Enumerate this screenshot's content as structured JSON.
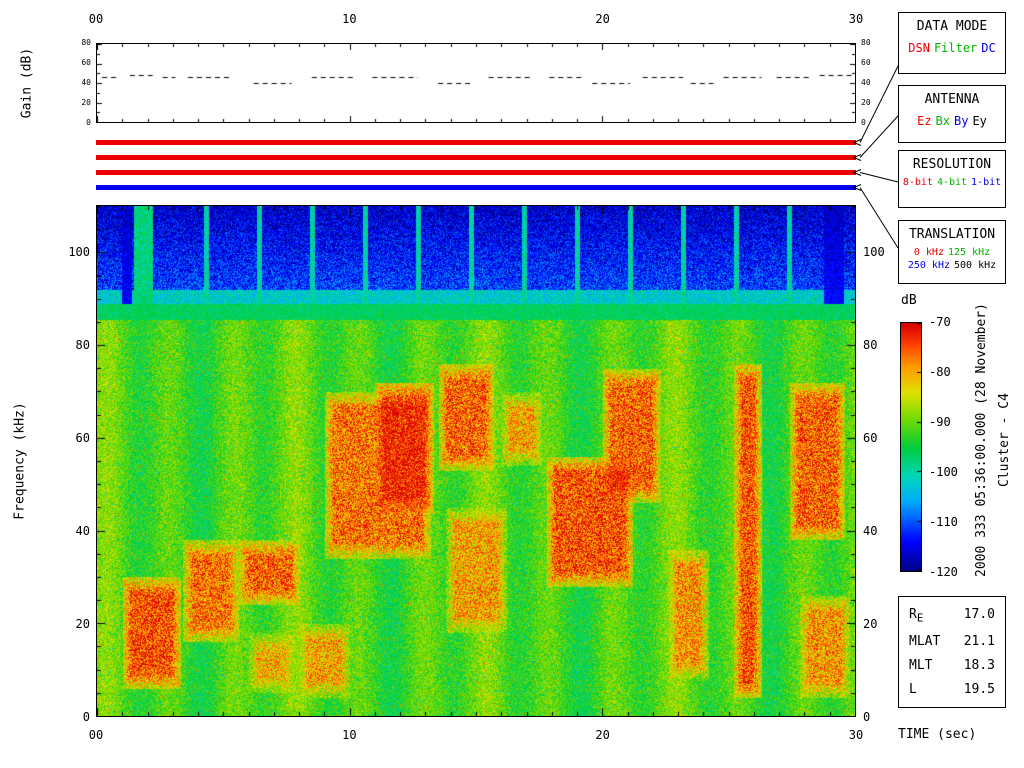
{
  "chart_data": {
    "type": "heatmap",
    "annotations": {
      "datetime": "2000 333 05:36:00.000 (28 November)",
      "spacecraft": "Cluster - C4"
    },
    "status_bars": [
      {
        "legend": "DATA MODE",
        "value": "DSN",
        "color": "#ee0000"
      },
      {
        "legend": "ANTENNA",
        "value": "Ez",
        "color": "#ee0000"
      },
      {
        "legend": "RESOLUTION",
        "value": "8-bit",
        "color": "#ee0000"
      },
      {
        "legend": "TRANSLATION",
        "value": "250 kHz",
        "color": "#0000ee"
      }
    ],
    "status_legends": [
      {
        "title": "DATA MODE",
        "items": [
          {
            "label": "DSN",
            "color": "#ee0000"
          },
          {
            "label": "Filter",
            "color": "#00b400"
          },
          {
            "label": "DC",
            "color": "#0000ee"
          }
        ]
      },
      {
        "title": "ANTENNA",
        "items": [
          {
            "label": "Ez",
            "color": "#ee0000"
          },
          {
            "label": "Bx",
            "color": "#00b400"
          },
          {
            "label": "By",
            "color": "#0000ee"
          },
          {
            "label": "Ey",
            "color": "#000000"
          }
        ]
      },
      {
        "title": "RESOLUTION",
        "items": [
          {
            "label": "8-bit",
            "color": "#ee0000"
          },
          {
            "label": "4-bit",
            "color": "#00b400"
          },
          {
            "label": "1-bit",
            "color": "#0000ee"
          }
        ]
      },
      {
        "title": "TRANSLATION",
        "items": [
          {
            "label": "0 kHz",
            "color": "#ee0000"
          },
          {
            "label": "125 kHz",
            "color": "#00b400"
          },
          {
            "label": "250 kHz",
            "color": "#0000ee"
          },
          {
            "label": "500 kHz",
            "color": "#000000"
          }
        ]
      }
    ],
    "panels": [
      {
        "name": "gain",
        "type": "line",
        "ylabel": "Gain (dB)",
        "xlim": [
          0,
          30
        ],
        "ylim": [
          0,
          80
        ],
        "xticks": [
          0,
          10,
          20,
          30
        ],
        "xtick_labels": [
          "00",
          "10",
          "20",
          "30"
        ],
        "yticks": [
          0,
          20,
          40,
          60,
          80
        ],
        "ytick_labels": [
          "0",
          "20",
          "40",
          "60",
          "80"
        ],
        "line_style": "dashed",
        "segments": [
          {
            "t0": 0.2,
            "t1": 0.9,
            "gain": 46
          },
          {
            "t0": 1.3,
            "t1": 2.2,
            "gain": 48
          },
          {
            "t0": 2.6,
            "t1": 3.1,
            "gain": 46
          },
          {
            "t0": 3.6,
            "t1": 5.3,
            "gain": 46
          },
          {
            "t0": 6.2,
            "t1": 7.7,
            "gain": 40
          },
          {
            "t0": 8.5,
            "t1": 10.2,
            "gain": 46
          },
          {
            "t0": 10.9,
            "t1": 12.7,
            "gain": 46
          },
          {
            "t0": 13.5,
            "t1": 14.9,
            "gain": 40
          },
          {
            "t0": 15.5,
            "t1": 17.2,
            "gain": 46
          },
          {
            "t0": 17.9,
            "t1": 19.3,
            "gain": 46
          },
          {
            "t0": 19.6,
            "t1": 21.1,
            "gain": 40
          },
          {
            "t0": 21.6,
            "t1": 23.2,
            "gain": 46
          },
          {
            "t0": 23.5,
            "t1": 24.4,
            "gain": 40
          },
          {
            "t0": 24.8,
            "t1": 26.3,
            "gain": 46
          },
          {
            "t0": 26.9,
            "t1": 28.2,
            "gain": 46
          },
          {
            "t0": 28.6,
            "t1": 29.9,
            "gain": 48
          }
        ]
      },
      {
        "name": "spectrogram",
        "type": "heatmap",
        "xlabel": "TIME (sec)",
        "ylabel": "Frequency (kHz)",
        "xlim": [
          0,
          30
        ],
        "ylim": [
          0,
          110
        ],
        "xticks": [
          0,
          10,
          20,
          30
        ],
        "xtick_labels": [
          "00",
          "10",
          "20",
          "30"
        ],
        "yticks": [
          0,
          20,
          40,
          60,
          80,
          100
        ],
        "ytick_labels": [
          "0",
          "20",
          "40",
          "60",
          "80",
          "100"
        ],
        "colorbar": {
          "label": "dB",
          "min": -120,
          "max": -70,
          "ticks": [
            -70,
            -80,
            -90,
            -100,
            -110,
            -120
          ],
          "tick_labels": [
            "-70",
            "-80",
            "-90",
            "-100",
            "-110",
            "-120"
          ]
        },
        "noise_floor_bands": [
          {
            "f0": 92,
            "f1": 110,
            "db": -112,
            "desc": "blue speckled noise floor"
          },
          {
            "f0": 89,
            "f1": 92,
            "db": -102,
            "desc": "transition band"
          },
          {
            "f0": 85.5,
            "f1": 89,
            "db": -96.5,
            "desc": "green band near 88 kHz"
          },
          {
            "f0": 0,
            "f1": 85.5,
            "db": -91.5,
            "desc": "broadband yellow-green emission with vertical striations"
          }
        ],
        "stripe_period_sec": 2.5,
        "hot_regions": [
          {
            "t0": 1.0,
            "t1": 3.3,
            "f0": 6,
            "f1": 30,
            "db": -75
          },
          {
            "t0": 3.4,
            "t1": 5.6,
            "f0": 16,
            "f1": 38,
            "db": -77
          },
          {
            "t0": 5.6,
            "t1": 8.0,
            "f0": 24,
            "f1": 38,
            "db": -76
          },
          {
            "t0": 6.0,
            "t1": 7.8,
            "f0": 5,
            "f1": 18,
            "db": -81
          },
          {
            "t0": 8.0,
            "t1": 10.0,
            "f0": 4,
            "f1": 20,
            "db": -80
          },
          {
            "t0": 9.0,
            "t1": 13.2,
            "f0": 34,
            "f1": 70,
            "db": -77
          },
          {
            "t0": 11.0,
            "t1": 13.3,
            "f0": 44,
            "f1": 72,
            "db": -74
          },
          {
            "t0": 13.5,
            "t1": 15.7,
            "f0": 53,
            "f1": 76,
            "db": -76
          },
          {
            "t0": 13.8,
            "t1": 16.2,
            "f0": 18,
            "f1": 45,
            "db": -80
          },
          {
            "t0": 16.0,
            "t1": 17.6,
            "f0": 54,
            "f1": 70,
            "db": -80
          },
          {
            "t0": 17.8,
            "t1": 21.2,
            "f0": 28,
            "f1": 56,
            "db": -75
          },
          {
            "t0": 20.0,
            "t1": 22.3,
            "f0": 46,
            "f1": 75,
            "db": -76
          },
          {
            "t0": 22.6,
            "t1": 24.2,
            "f0": 8,
            "f1": 36,
            "db": -79
          },
          {
            "t0": 25.2,
            "t1": 26.3,
            "f0": 4,
            "f1": 76,
            "db": -75
          },
          {
            "t0": 27.4,
            "t1": 29.6,
            "f0": 38,
            "f1": 72,
            "db": -76
          },
          {
            "t0": 27.8,
            "t1": 29.8,
            "f0": 4,
            "f1": 26,
            "db": -79
          }
        ],
        "cold_columns": [
          {
            "t0": 0.95,
            "t1": 1.35
          },
          {
            "t0": 28.75,
            "t1": 29.55
          }
        ],
        "green_column": {
          "t0": 1.45,
          "t1": 2.2
        },
        "spike_times": [
          4.3,
          6.4,
          8.5,
          10.6,
          12.7,
          14.8,
          16.9,
          19.0,
          21.1,
          23.2,
          25.3,
          27.4
        ]
      }
    ]
  },
  "info_box": {
    "rows": [
      {
        "label": "R",
        "label_sub": "E",
        "value": "17.0"
      },
      {
        "label": "MLAT",
        "value": "21.1"
      },
      {
        "label": "MLT",
        "value": "18.3"
      },
      {
        "label": "L",
        "value": "19.5"
      }
    ]
  }
}
